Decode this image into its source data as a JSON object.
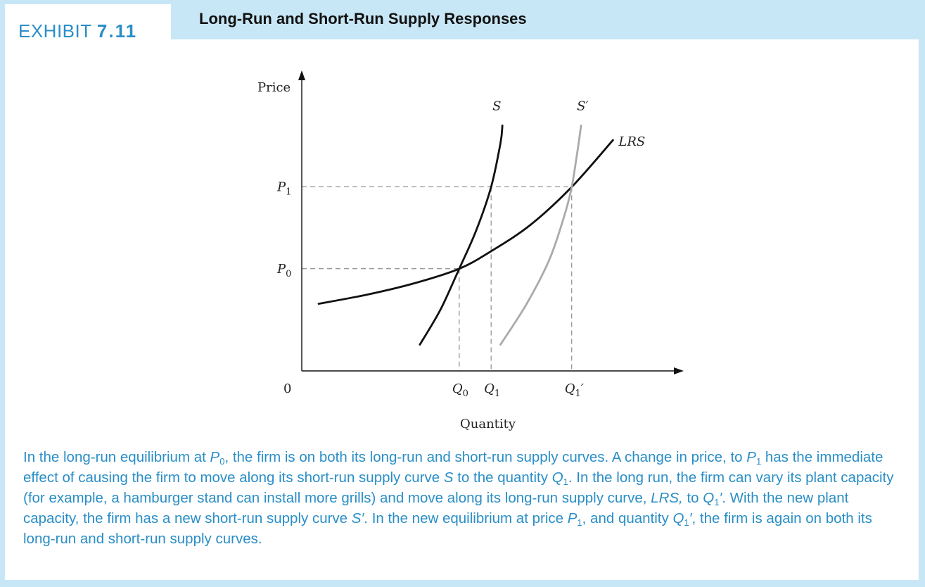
{
  "exhibit": {
    "word": "EXHIBIT",
    "number": "7.11"
  },
  "title": "Long-Run and Short-Run Supply Responses",
  "chart_data": {
    "type": "line",
    "title": "Long-Run and Short-Run Supply Responses",
    "xlabel": "Quantity",
    "ylabel": "Price",
    "origin_label": "0",
    "axes": {
      "x_arrow": true,
      "y_arrow": true,
      "grid": false
    },
    "price_levels": [
      {
        "name": "P0",
        "label": "P",
        "sub": "0",
        "value": 0.35
      },
      {
        "name": "P1",
        "label": "P",
        "sub": "1",
        "value": 0.63
      }
    ],
    "quantity_levels": [
      {
        "name": "Q0",
        "label": "Q",
        "sub": "0",
        "prime": false,
        "value": 0.42
      },
      {
        "name": "Q1",
        "label": "Q",
        "sub": "1",
        "prime": false,
        "value": 0.505
      },
      {
        "name": "Q1prime",
        "label": "Q",
        "sub": "1",
        "prime": true,
        "value": 0.72
      }
    ],
    "series": [
      {
        "name": "LRS",
        "label": "LRS",
        "color": "#111111",
        "points": [
          [
            0.045,
            0.23
          ],
          [
            0.17,
            0.26
          ],
          [
            0.3,
            0.3
          ],
          [
            0.42,
            0.35
          ],
          [
            0.505,
            0.41
          ],
          [
            0.61,
            0.5
          ],
          [
            0.72,
            0.63
          ],
          [
            0.83,
            0.79
          ]
        ]
      },
      {
        "name": "S",
        "label": "S",
        "color": "#111111",
        "points": [
          [
            0.315,
            0.09
          ],
          [
            0.37,
            0.21
          ],
          [
            0.42,
            0.35
          ],
          [
            0.465,
            0.48
          ],
          [
            0.505,
            0.63
          ],
          [
            0.53,
            0.78
          ],
          [
            0.535,
            0.84
          ]
        ]
      },
      {
        "name": "S'",
        "label": "S′",
        "color": "#aaaaaa",
        "points": [
          [
            0.53,
            0.09
          ],
          [
            0.6,
            0.23
          ],
          [
            0.66,
            0.38
          ],
          [
            0.7,
            0.53
          ],
          [
            0.72,
            0.63
          ],
          [
            0.735,
            0.75
          ],
          [
            0.745,
            0.84
          ]
        ]
      }
    ]
  },
  "caption": [
    {
      "t": "In the long-run equilibrium at "
    },
    {
      "t": "P",
      "i": true
    },
    {
      "t": "0",
      "sub": true
    },
    {
      "t": ", the firm is on both its long-run and short-run supply curves. A change in price, to "
    },
    {
      "t": "P",
      "i": true
    },
    {
      "t": "1",
      "sub": true
    },
    {
      "t": " has the immediate effect of causing the firm to move along its short-run supply curve "
    },
    {
      "t": "S",
      "i": true
    },
    {
      "t": " to the quantity "
    },
    {
      "t": "Q",
      "i": true
    },
    {
      "t": "1",
      "sub": true
    },
    {
      "t": ". In the long run, the firm can vary its plant capacity (for example, a hamburger stand can install more grills) and move along its long-run supply curve, "
    },
    {
      "t": "LRS,",
      "i": true
    },
    {
      "t": " to "
    },
    {
      "t": "Q",
      "i": true
    },
    {
      "t": "1",
      "sub": true
    },
    {
      "t": "′",
      "i": true
    },
    {
      "t": ". With the new plant capacity, the firm has a new short-run supply curve "
    },
    {
      "t": "S′",
      "i": true
    },
    {
      "t": ". In the new equilibrium at price "
    },
    {
      "t": "P",
      "i": true
    },
    {
      "t": "1",
      "sub": true
    },
    {
      "t": ", and quantity "
    },
    {
      "t": "Q",
      "i": true
    },
    {
      "t": "1",
      "sub": true
    },
    {
      "t": "′",
      "i": true
    },
    {
      "t": ", the firm is again on both its long-run and short-run supply curves."
    }
  ]
}
